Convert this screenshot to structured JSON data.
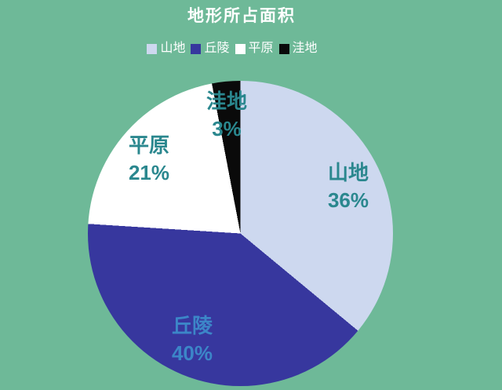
{
  "title": "地形所占面积",
  "colors": {
    "background": "#6eb998",
    "title_text": "#ffffff",
    "legend_text": "#ffffff"
  },
  "chart_data": {
    "type": "pie",
    "title": "地形所占面积",
    "legend_position": "top",
    "start_angle_deg": 0,
    "direction": "clockwise",
    "slices": [
      {
        "name": "山地",
        "value": 36,
        "pct_label": "36%",
        "color": "#cdd8ef",
        "label_color": "#2a878e"
      },
      {
        "name": "丘陵",
        "value": 40,
        "pct_label": "40%",
        "color": "#37379e",
        "label_color": "#3c86c8"
      },
      {
        "name": "平原",
        "value": 21,
        "pct_label": "21%",
        "color": "#ffffff",
        "label_color": "#2a878e"
      },
      {
        "name": "洼地",
        "value": 3,
        "pct_label": "3%",
        "color": "#0a0a0a",
        "label_color": "#2a878e"
      }
    ]
  }
}
